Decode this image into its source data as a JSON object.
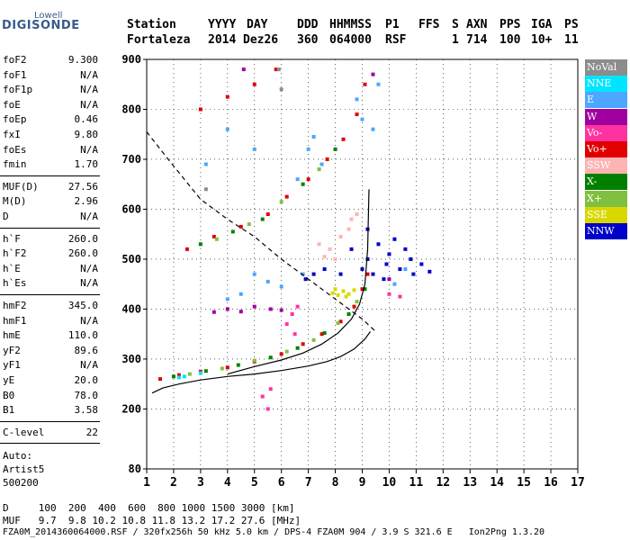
{
  "logo": {
    "top": "Lowell",
    "main": "DIGISONDE"
  },
  "header": {
    "row1": [
      "Station",
      "YYYY",
      "DAY",
      "DDD",
      "HHMMSS",
      "P1",
      "FFS",
      "S",
      "AXN",
      "PPS",
      "IGA",
      "PS"
    ],
    "row2": [
      "Fortaleza",
      "2014",
      "Dez26",
      "360",
      "064000",
      "RSF",
      "1",
      "714",
      "100",
      "10+",
      "11"
    ]
  },
  "params": {
    "group1": [
      {
        "name": "foF2",
        "value": "9.300"
      },
      {
        "name": "foF1",
        "value": "N/A"
      },
      {
        "name": "foF1p",
        "value": "N/A"
      },
      {
        "name": "foE",
        "value": "N/A"
      },
      {
        "name": "foEp",
        "value": "0.46"
      },
      {
        "name": "fxI",
        "value": "9.80"
      },
      {
        "name": "foEs",
        "value": "N/A"
      },
      {
        "name": "fmin",
        "value": "1.70"
      }
    ],
    "group2": [
      {
        "name": "MUF(D)",
        "value": "27.56"
      },
      {
        "name": "M(D)",
        "value": "2.96"
      },
      {
        "name": "D",
        "value": "N/A"
      }
    ],
    "group3": [
      {
        "name": "h`F",
        "value": "260.0"
      },
      {
        "name": "h`F2",
        "value": "260.0"
      },
      {
        "name": "h`E",
        "value": "N/A"
      },
      {
        "name": "h`Es",
        "value": "N/A"
      }
    ],
    "group4": [
      {
        "name": "hmF2",
        "value": "345.0"
      },
      {
        "name": "hmF1",
        "value": "N/A"
      },
      {
        "name": "hmE",
        "value": "110.0"
      },
      {
        "name": "yF2",
        "value": "89.6"
      },
      {
        "name": "yF1",
        "value": "N/A"
      },
      {
        "name": "yE",
        "value": "20.0"
      },
      {
        "name": "B0",
        "value": "78.0"
      },
      {
        "name": "B1",
        "value": "3.58"
      }
    ],
    "clevel": {
      "name": "C-level",
      "value": "22"
    },
    "auto": [
      "Auto:",
      "Artist5",
      "500200"
    ]
  },
  "legend": [
    {
      "label": "NoVal",
      "color": "#8c8c8c"
    },
    {
      "label": "NNE",
      "color": "#00e5ff"
    },
    {
      "label": "E",
      "color": "#4da6ff"
    },
    {
      "label": "W",
      "color": "#a000a0"
    },
    {
      "label": "Vo-",
      "color": "#ff33a0"
    },
    {
      "label": "Vo+",
      "color": "#e00000"
    },
    {
      "label": "SSW",
      "color": "#ffb4b4"
    },
    {
      "label": "X-",
      "color": "#008000"
    },
    {
      "label": "X+",
      "color": "#80c040"
    },
    {
      "label": "SSE",
      "color": "#d8d800"
    },
    {
      "label": "NNW",
      "color": "#0000c8"
    }
  ],
  "chart_data": {
    "type": "scatter",
    "xlabel": "",
    "ylabel": "",
    "xlim": [
      1,
      17
    ],
    "ylim": [
      80,
      900
    ],
    "xticks": [
      "1",
      "2",
      "3",
      "4",
      "5",
      "6",
      "7",
      "8",
      "9",
      "10",
      "11",
      "12",
      "13",
      "14",
      "15",
      "16",
      "17"
    ],
    "yticks": [
      "80",
      "200",
      "300",
      "400",
      "500",
      "600",
      "700",
      "800",
      "900"
    ],
    "series": [
      {
        "name": "Vo+",
        "color": "#e00000",
        "points": [
          [
            1.5,
            260
          ],
          [
            2.2,
            268
          ],
          [
            3,
            275
          ],
          [
            4,
            283
          ],
          [
            5,
            295
          ],
          [
            6,
            310
          ],
          [
            6.8,
            330
          ],
          [
            7.5,
            350
          ],
          [
            8.2,
            375
          ],
          [
            8.7,
            405
          ],
          [
            9,
            440
          ],
          [
            9.2,
            470
          ],
          [
            2.5,
            520
          ],
          [
            3.5,
            545
          ],
          [
            4.5,
            565
          ],
          [
            5.5,
            590
          ],
          [
            6.2,
            625
          ],
          [
            7,
            660
          ],
          [
            7.7,
            700
          ],
          [
            8.3,
            740
          ],
          [
            8.8,
            790
          ],
          [
            9.1,
            850
          ],
          [
            3,
            800
          ],
          [
            4,
            825
          ],
          [
            5,
            850
          ],
          [
            5.8,
            880
          ]
        ]
      },
      {
        "name": "X-",
        "color": "#008000",
        "points": [
          [
            2,
            265
          ],
          [
            3.2,
            276
          ],
          [
            4.4,
            288
          ],
          [
            5.6,
            303
          ],
          [
            6.6,
            322
          ],
          [
            7.6,
            352
          ],
          [
            8.5,
            390
          ],
          [
            9.1,
            440
          ],
          [
            3,
            530
          ],
          [
            4.2,
            555
          ],
          [
            5.3,
            580
          ],
          [
            6.8,
            650
          ],
          [
            8,
            720
          ]
        ]
      },
      {
        "name": "X+",
        "color": "#80c040",
        "points": [
          [
            2.6,
            270
          ],
          [
            3.8,
            281
          ],
          [
            5,
            297
          ],
          [
            6.2,
            315
          ],
          [
            7.2,
            338
          ],
          [
            8.1,
            372
          ],
          [
            8.8,
            415
          ],
          [
            3.6,
            540
          ],
          [
            4.8,
            570
          ],
          [
            6,
            615
          ],
          [
            7.4,
            680
          ]
        ]
      },
      {
        "name": "E",
        "color": "#4da6ff",
        "points": [
          [
            5,
            470
          ],
          [
            5.5,
            455
          ],
          [
            6,
            445
          ],
          [
            4.5,
            430
          ],
          [
            4,
            420
          ],
          [
            6.8,
            470
          ],
          [
            7,
            720
          ],
          [
            7.2,
            745
          ],
          [
            9,
            780
          ],
          [
            9.4,
            760
          ],
          [
            8.8,
            820
          ],
          [
            9.6,
            850
          ],
          [
            7.5,
            690
          ],
          [
            6.6,
            660
          ],
          [
            10.2,
            450
          ],
          [
            10.6,
            480
          ],
          [
            4,
            760
          ],
          [
            5,
            720
          ],
          [
            3.2,
            690
          ]
        ]
      },
      {
        "name": "NNW",
        "color": "#0000c8",
        "points": [
          [
            9.2,
            500
          ],
          [
            9.6,
            530
          ],
          [
            10,
            510
          ],
          [
            10.4,
            480
          ],
          [
            10.8,
            500
          ],
          [
            9.4,
            470
          ],
          [
            9.8,
            460
          ],
          [
            11.2,
            490
          ],
          [
            11.5,
            475
          ],
          [
            9,
            480
          ],
          [
            8.6,
            520
          ],
          [
            10.2,
            540
          ],
          [
            9.2,
            560
          ],
          [
            8.2,
            470
          ],
          [
            7.6,
            480
          ],
          [
            7.2,
            470
          ],
          [
            6.9,
            460
          ],
          [
            10.6,
            520
          ],
          [
            9.9,
            490
          ],
          [
            10.9,
            470
          ]
        ]
      },
      {
        "name": "SSW",
        "color": "#ffb4b4",
        "points": [
          [
            7.8,
            520
          ],
          [
            8.2,
            545
          ],
          [
            8.5,
            560
          ],
          [
            8,
            500
          ],
          [
            7.6,
            505
          ],
          [
            8.6,
            580
          ],
          [
            7.4,
            530
          ],
          [
            8.8,
            590
          ]
        ]
      },
      {
        "name": "SSE",
        "color": "#d8d800",
        "points": [
          [
            7.9,
            432
          ],
          [
            8.1,
            428
          ],
          [
            8.3,
            436
          ],
          [
            8.5,
            430
          ],
          [
            8.7,
            438
          ],
          [
            8,
            440
          ],
          [
            8.4,
            425
          ]
        ]
      },
      {
        "name": "W",
        "color": "#a000a0",
        "points": [
          [
            4,
            400
          ],
          [
            4.5,
            395
          ],
          [
            5,
            405
          ],
          [
            5.6,
            400
          ],
          [
            6,
            398
          ],
          [
            3.5,
            394
          ],
          [
            9.4,
            870
          ],
          [
            10,
            460
          ],
          [
            4.6,
            880
          ]
        ]
      },
      {
        "name": "Vo-",
        "color": "#ff33a0",
        "points": [
          [
            6.2,
            370
          ],
          [
            6.4,
            390
          ],
          [
            6.6,
            405
          ],
          [
            6.5,
            350
          ],
          [
            5.3,
            225
          ],
          [
            5.6,
            240
          ],
          [
            5.5,
            200
          ],
          [
            10,
            430
          ],
          [
            10.4,
            425
          ]
        ]
      },
      {
        "name": "NNE",
        "color": "#00e5ff",
        "points": [
          [
            2.2,
            263
          ],
          [
            2.4,
            265
          ],
          [
            3,
            272
          ]
        ]
      },
      {
        "name": "NoVal",
        "color": "#8c8c8c",
        "points": [
          [
            5.9,
            880
          ],
          [
            6,
            840
          ],
          [
            3.2,
            640
          ]
        ]
      }
    ],
    "curves": [
      {
        "style": "solid",
        "points": [
          [
            1.2,
            232
          ],
          [
            1.6,
            242
          ],
          [
            2.2,
            250
          ],
          [
            3,
            258
          ],
          [
            4,
            265
          ],
          [
            5,
            270
          ],
          [
            6,
            277
          ],
          [
            7,
            286
          ],
          [
            7.7,
            295
          ],
          [
            8.2,
            305
          ],
          [
            8.7,
            320
          ],
          [
            9.1,
            340
          ],
          [
            9.3,
            355
          ]
        ]
      },
      {
        "style": "solid",
        "points": [
          [
            4,
            270
          ],
          [
            5,
            285
          ],
          [
            6,
            298
          ],
          [
            6.8,
            312
          ],
          [
            7.5,
            330
          ],
          [
            8.1,
            352
          ],
          [
            8.6,
            380
          ],
          [
            8.9,
            410
          ],
          [
            9.1,
            450
          ],
          [
            9.2,
            520
          ],
          [
            9.25,
            640
          ]
        ]
      },
      {
        "style": "dashed",
        "points": [
          [
            1,
            755
          ],
          [
            1.8,
            700
          ],
          [
            2.4,
            660
          ],
          [
            3,
            620
          ],
          [
            4,
            580
          ],
          [
            5,
            545
          ],
          [
            6,
            500
          ],
          [
            7,
            460
          ],
          [
            8,
            420
          ],
          [
            9,
            380
          ],
          [
            9.5,
            355
          ]
        ]
      }
    ]
  },
  "footer": {
    "row1": "D     100  200  400  600  800 1000 1500 3000 [km]",
    "row2": "MUF   9.7  9.8 10.2 10.8 11.8 13.2 17.2 27.6 [MHz]",
    "row3": "FZA0M_2014360064000.RSF / 320fx256h 50 kHz 5.0 km / DPS-4 FZA0M 904 / 3.9 S 321.6 E   Ion2Png 1.3.20"
  }
}
